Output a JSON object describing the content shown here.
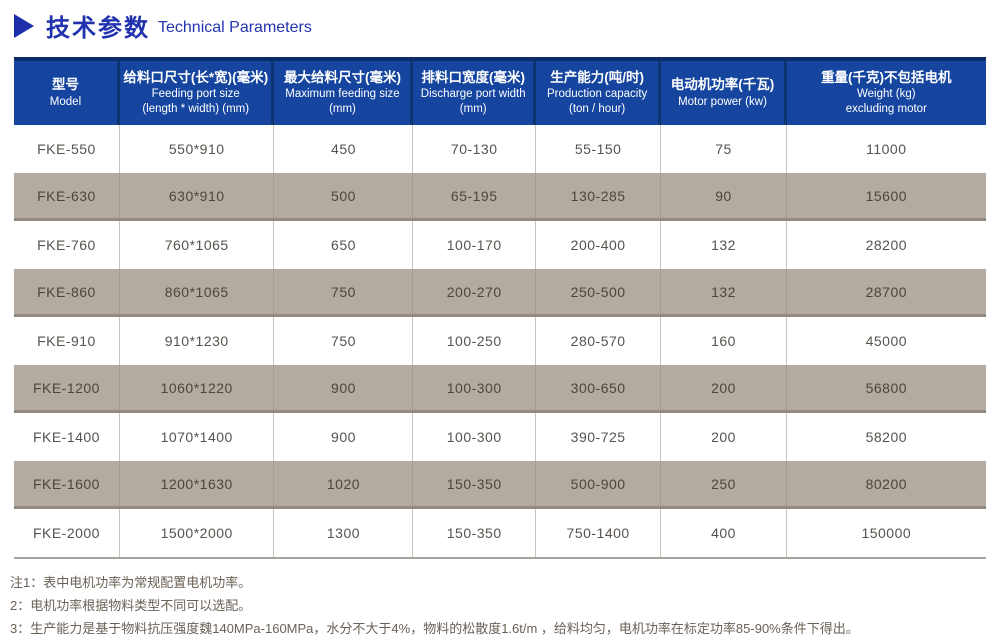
{
  "header": {
    "title_zh": "技术参数",
    "title_en": "Technical Parameters"
  },
  "colors": {
    "title_blue": "#2132ae",
    "table_header_bg": "#15459f",
    "table_top_border": "#0a2b66",
    "alt_row_bg": "#b3aaa1",
    "alt_row_border": "#93897f",
    "grid_line": "#c6c2be",
    "body_text": "#57524d",
    "note_text": "#6b6156"
  },
  "table": {
    "columns": [
      {
        "zh": "型号",
        "en1": "Model"
      },
      {
        "zh": "给料口尺寸(长*宽)(毫米)",
        "en1": "Feeding port size",
        "en2": "(length * width) (mm)"
      },
      {
        "zh": "最大给料尺寸(毫米)",
        "en1": "Maximum feeding size",
        "en2": "(mm)"
      },
      {
        "zh": "排料口宽度(毫米)",
        "en1": "Discharge port width",
        "en2": "(mm)"
      },
      {
        "zh": "生产能力(吨/时)",
        "en1": "Production capacity",
        "en2": "(ton / hour)"
      },
      {
        "zh": "电动机功率(千瓦)",
        "en1": "Motor power (kw)"
      },
      {
        "zh": "重量(千克)不包括电机",
        "en1": "Weight (kg)",
        "en2": "excluding motor"
      }
    ],
    "rows": [
      {
        "model": "FKE-550",
        "feeding_port": "550*910",
        "max_feeding": "450",
        "discharge_width": "70-130",
        "capacity": "55-150",
        "power": "75",
        "weight": "11000"
      },
      {
        "model": "FKE-630",
        "feeding_port": "630*910",
        "max_feeding": "500",
        "discharge_width": "65-195",
        "capacity": "130-285",
        "power": "90",
        "weight": "15600"
      },
      {
        "model": "FKE-760",
        "feeding_port": "760*1065",
        "max_feeding": "650",
        "discharge_width": "100-170",
        "capacity": "200-400",
        "power": "132",
        "weight": "28200"
      },
      {
        "model": "FKE-860",
        "feeding_port": "860*1065",
        "max_feeding": "750",
        "discharge_width": "200-270",
        "capacity": "250-500",
        "power": "132",
        "weight": "28700"
      },
      {
        "model": "FKE-910",
        "feeding_port": "910*1230",
        "max_feeding": "750",
        "discharge_width": "100-250",
        "capacity": "280-570",
        "power": "160",
        "weight": "45000"
      },
      {
        "model": "FKE-1200",
        "feeding_port": "1060*1220",
        "max_feeding": "900",
        "discharge_width": "100-300",
        "capacity": "300-650",
        "power": "200",
        "weight": "56800"
      },
      {
        "model": "FKE-1400",
        "feeding_port": "1070*1400",
        "max_feeding": "900",
        "discharge_width": "100-300",
        "capacity": "390-725",
        "power": "200",
        "weight": "58200"
      },
      {
        "model": "FKE-1600",
        "feeding_port": "1200*1630",
        "max_feeding": "1020",
        "discharge_width": "150-350",
        "capacity": "500-900",
        "power": "250",
        "weight": "80200"
      },
      {
        "model": "FKE-2000",
        "feeding_port": "1500*2000",
        "max_feeding": "1300",
        "discharge_width": "150-350",
        "capacity": "750-1400",
        "power": "400",
        "weight": "150000"
      }
    ]
  },
  "notes": [
    "注1：表中电机功率为常规配置电机功率。",
    "2：电机功率根据物料类型不同可以选配。",
    "3：生产能力是基于物料抗压强度魏140MPa-160MPa，水分不大于4%，物料的松散度1.6t/m ，给料均匀，电机功率在标定功率85-90%条件下得出。"
  ]
}
